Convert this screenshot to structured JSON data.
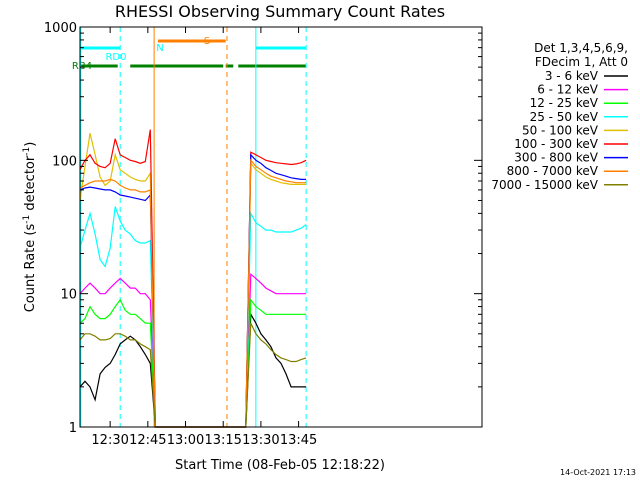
{
  "chart_data": {
    "type": "line",
    "title": "RHESSI Observing Summary Count Rates",
    "xlabel": "Start Time (08-Feb-05 12:18:22)",
    "ylabel_parts": {
      "main": "Count Rate (s",
      "sup": "-1",
      "tail": " detector",
      "sup2": "-1",
      "close": ")"
    },
    "y_scale": "log",
    "ylim": [
      1,
      1000
    ],
    "xlim_minutes": [
      738,
      898
    ],
    "x_ticks": [
      {
        "t": 750,
        "label": "12:30"
      },
      {
        "t": 765,
        "label": "12:45"
      },
      {
        "t": 780,
        "label": "13:00"
      },
      {
        "t": 795,
        "label": "13:15"
      },
      {
        "t": 810,
        "label": "13:30"
      },
      {
        "t": 825,
        "label": "13:45"
      }
    ],
    "y_ticks": [
      {
        "v": 1,
        "label": "1"
      },
      {
        "v": 10,
        "label": "10"
      },
      {
        "v": 100,
        "label": "100"
      },
      {
        "v": 1000,
        "label": "1000"
      }
    ],
    "legend_header": [
      "Det 1,3,4,5,6,9,",
      "FDecim 1, Att 0"
    ],
    "series": [
      {
        "name": "3 - 6 keV",
        "color": "#000000",
        "values": [
          2,
          2.2,
          2,
          1.6,
          2.5,
          2.8,
          3,
          3.5,
          4.2,
          4.5,
          4.8,
          4.5,
          4,
          3.5,
          3,
          1,
          1,
          1,
          1,
          1,
          1,
          1,
          1,
          1,
          1,
          1,
          7,
          6,
          5,
          4.5,
          4,
          3.3,
          3,
          2.5,
          2,
          2,
          2,
          2
        ]
      },
      {
        "name": "6 - 12 keV",
        "color": "#ff00ff",
        "values": [
          10,
          11,
          12,
          11,
          10,
          10,
          11,
          12,
          13,
          12,
          11,
          11,
          10,
          10,
          9,
          1,
          1,
          1,
          1,
          1,
          1,
          1,
          1,
          1,
          1,
          1,
          14,
          13,
          12,
          11,
          10.5,
          10,
          10,
          10,
          10,
          10,
          10,
          10
        ]
      },
      {
        "name": "12 - 25 keV",
        "color": "#00ff00",
        "values": [
          6,
          6.5,
          8,
          7,
          6.5,
          6.5,
          7,
          8,
          9,
          7.5,
          7,
          7,
          6.5,
          6,
          6,
          1,
          1,
          1,
          1,
          1,
          1,
          1,
          1,
          1,
          1,
          1,
          9,
          8,
          7.5,
          7,
          7,
          7,
          7,
          7,
          7,
          7,
          7,
          7
        ]
      },
      {
        "name": "25 - 50 keV",
        "color": "#00ffff",
        "values": [
          22,
          30,
          40,
          28,
          18,
          16,
          22,
          45,
          35,
          30,
          28,
          25,
          24,
          24,
          25,
          1,
          1,
          1,
          1,
          1,
          1,
          1,
          1,
          1,
          1,
          1,
          40,
          34,
          32,
          30,
          30,
          29,
          29,
          29,
          29,
          30,
          31,
          33
        ]
      },
      {
        "name": "50 - 100 keV",
        "color": "#e0c000",
        "values": [
          50,
          90,
          160,
          110,
          75,
          65,
          70,
          110,
          85,
          80,
          75,
          72,
          70,
          70,
          80,
          1,
          1,
          1,
          1,
          1,
          1,
          1,
          1,
          1,
          1,
          1,
          95,
          85,
          80,
          75,
          72,
          70,
          68,
          67,
          66,
          66,
          66,
          66
        ]
      },
      {
        "name": "100 - 300 keV",
        "color": "#ff0000",
        "values": [
          85,
          100,
          110,
          95,
          90,
          88,
          95,
          145,
          110,
          105,
          100,
          98,
          95,
          98,
          170,
          1,
          1,
          1,
          1,
          1,
          1,
          1,
          1,
          1,
          1,
          1,
          115,
          110,
          105,
          100,
          98,
          96,
          95,
          94,
          93,
          94,
          96,
          100
        ]
      },
      {
        "name": "300 - 800 keV",
        "color": "#0000ff",
        "values": [
          60,
          62,
          63,
          62,
          61,
          60,
          60,
          58,
          55,
          54,
          53,
          52,
          51,
          50,
          55,
          1,
          1,
          1,
          1,
          1,
          1,
          1,
          1,
          1,
          1,
          1,
          110,
          100,
          95,
          88,
          84,
          80,
          78,
          76,
          74,
          73,
          72,
          72
        ]
      },
      {
        "name": "800 - 7000 keV",
        "color": "#ff8000",
        "values": [
          62,
          65,
          68,
          70,
          70,
          70,
          72,
          70,
          65,
          62,
          60,
          60,
          58,
          58,
          60,
          1,
          1,
          1,
          1,
          1,
          1,
          1,
          1,
          1,
          1,
          1,
          100,
          90,
          85,
          80,
          76,
          74,
          72,
          70,
          69,
          68,
          68,
          68
        ]
      },
      {
        "name": "7000 - 15000 keV",
        "color": "#808000",
        "values": [
          4.5,
          5,
          5,
          4.8,
          4.5,
          4.5,
          4.6,
          5,
          5,
          4.8,
          4.5,
          4.5,
          4.2,
          4,
          3.8,
          1,
          1,
          1,
          1,
          1,
          1,
          1,
          1,
          1,
          1,
          1,
          6,
          5,
          4.5,
          4.2,
          3.8,
          3.5,
          3.3,
          3.2,
          3.1,
          3.1,
          3.2,
          3.3
        ]
      }
    ],
    "x_minutes": [
      738,
      740,
      742,
      744,
      746,
      748,
      750,
      752,
      754,
      756,
      758,
      760,
      762,
      764,
      766,
      768,
      772,
      776,
      780,
      784,
      788,
      792,
      796,
      800,
      802,
      804,
      806,
      808,
      810,
      812,
      814,
      816,
      818,
      820,
      822,
      824,
      826,
      828
    ],
    "flags": [
      {
        "name": "N",
        "label": "N",
        "color": "#00ffff",
        "intervals": [
          [
            738,
            754
          ],
          [
            808,
            828
          ]
        ]
      },
      {
        "name": "RD0",
        "label": "RD0",
        "color": "#00ffff",
        "intervals": []
      },
      {
        "name": "RB4",
        "label": "RB4",
        "color": "#008000",
        "intervals": [
          [
            738,
            753
          ],
          [
            758,
            795
          ],
          [
            796,
            799
          ],
          [
            801,
            828
          ]
        ]
      },
      {
        "name": "S",
        "label": "S",
        "color": "#ff8000",
        "intervals": [
          [
            769,
            796
          ]
        ]
      }
    ],
    "vlines": [
      {
        "t": 738.3,
        "color": "#00ffff",
        "style": "solid"
      },
      {
        "t": 754,
        "color": "#00ffff",
        "style": "dashed"
      },
      {
        "t": 767.5,
        "color": "#ff8000",
        "style": "solid"
      },
      {
        "t": 796.5,
        "color": "#ff8000",
        "style": "dashed"
      },
      {
        "t": 808,
        "color": "#00ffff",
        "style": "solid"
      },
      {
        "t": 828,
        "color": "#00ffff",
        "style": "dashed"
      }
    ],
    "timestamp": "14-Oct-2021 17:13"
  }
}
